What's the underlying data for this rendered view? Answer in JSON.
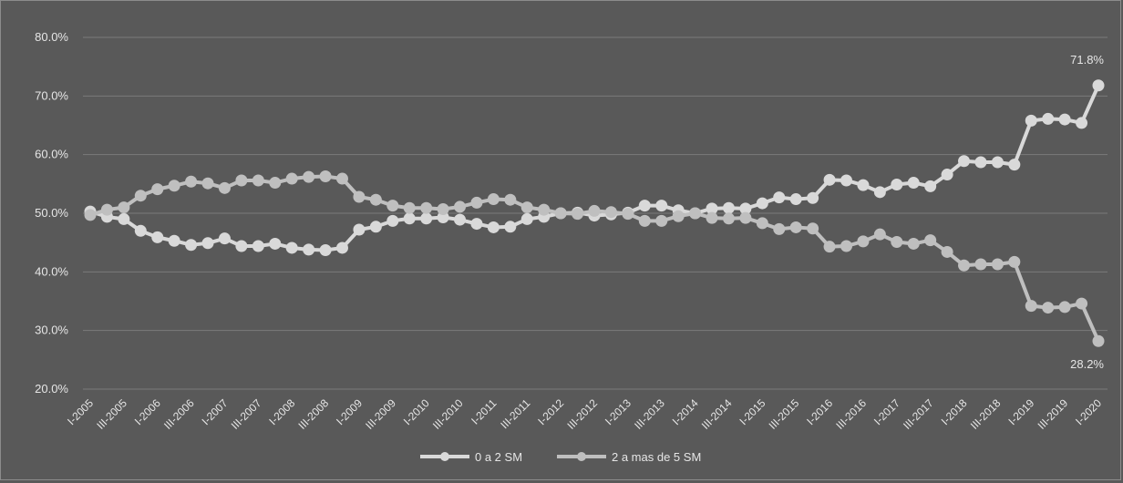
{
  "chart_data": {
    "type": "line",
    "title": "",
    "xlabel": "",
    "ylabel": "",
    "ylim": [
      0.2,
      0.8
    ],
    "y_ticks": [
      "80.0%",
      "70.0%",
      "60.0%",
      "50.0%",
      "40.0%",
      "30.0%",
      "20.0%"
    ],
    "y_tick_values": [
      0.8,
      0.7,
      0.6,
      0.5,
      0.4,
      0.3,
      0.2
    ],
    "grid": "horizontal",
    "legend_position": "bottom",
    "x": [
      "I-2005",
      "II-2005",
      "III-2005",
      "IV-2005",
      "I-2006",
      "II-2006",
      "III-2006",
      "IV-2006",
      "I-2007",
      "II-2007",
      "III-2007",
      "IV-2007",
      "I-2008",
      "II-2008",
      "III-2008",
      "IV-2008",
      "I-2009",
      "II-2009",
      "III-2009",
      "IV-2009",
      "I-2010",
      "II-2010",
      "III-2010",
      "IV-2010",
      "I-2011",
      "II-2011",
      "III-2011",
      "IV-2011",
      "I-2012",
      "II-2012",
      "III-2012",
      "IV-2012",
      "I-2013",
      "II-2013",
      "III-2013",
      "IV-2013",
      "I-2014",
      "II-2014",
      "III-2014",
      "IV-2014",
      "I-2015",
      "II-2015",
      "III-2015",
      "IV-2015",
      "I-2016",
      "II-2016",
      "III-2016",
      "IV-2016",
      "I-2017",
      "II-2017",
      "III-2017",
      "IV-2017",
      "I-2018",
      "II-2018",
      "III-2018",
      "IV-2018",
      "I-2019",
      "II-2019",
      "III-2019",
      "IV-2019",
      "I-2020"
    ],
    "x_tick_labels": [
      "I-2005",
      "III-2005",
      "I-2006",
      "III-2006",
      "I-2007",
      "III-2007",
      "I-2008",
      "III-2008",
      "I-2009",
      "III-2009",
      "I-2010",
      "III-2010",
      "I-2011",
      "III-2011",
      "I-2012",
      "III-2012",
      "I-2013",
      "III-2013",
      "I-2014",
      "III-2014",
      "I-2015",
      "III-2015",
      "I-2016",
      "III-2016",
      "I-2017",
      "III-2017",
      "I-2018",
      "III-2018",
      "I-2019",
      "III-2019",
      "I-2020"
    ],
    "series": [
      {
        "name": "0 a 2 SM",
        "color": "#d9d9d9",
        "values": [
          0.503,
          0.494,
          0.49,
          0.47,
          0.459,
          0.453,
          0.446,
          0.449,
          0.457,
          0.444,
          0.444,
          0.448,
          0.441,
          0.438,
          0.437,
          0.441,
          0.472,
          0.477,
          0.487,
          0.491,
          0.491,
          0.493,
          0.489,
          0.482,
          0.476,
          0.477,
          0.49,
          0.494,
          0.5,
          0.501,
          0.496,
          0.498,
          0.501,
          0.513,
          0.513,
          0.505,
          0.5,
          0.508,
          0.509,
          0.508,
          0.517,
          0.527,
          0.524,
          0.526,
          0.557,
          0.556,
          0.548,
          0.536,
          0.549,
          0.552,
          0.546,
          0.566,
          0.589,
          0.587,
          0.587,
          0.583,
          0.658,
          0.661,
          0.66,
          0.654,
          0.718
        ],
        "end_label": "71.8%"
      },
      {
        "name": "2 a mas de 5 SM",
        "color": "#bfbfbf",
        "values": [
          0.497,
          0.506,
          0.51,
          0.53,
          0.541,
          0.547,
          0.554,
          0.551,
          0.543,
          0.556,
          0.556,
          0.552,
          0.559,
          0.562,
          0.563,
          0.559,
          0.528,
          0.523,
          0.513,
          0.509,
          0.509,
          0.507,
          0.511,
          0.518,
          0.524,
          0.523,
          0.51,
          0.506,
          0.5,
          0.499,
          0.504,
          0.502,
          0.499,
          0.487,
          0.487,
          0.495,
          0.5,
          0.492,
          0.491,
          0.492,
          0.483,
          0.473,
          0.476,
          0.474,
          0.443,
          0.444,
          0.452,
          0.464,
          0.451,
          0.448,
          0.454,
          0.434,
          0.411,
          0.413,
          0.413,
          0.417,
          0.342,
          0.339,
          0.34,
          0.346,
          0.282
        ],
        "end_label": "28.2%"
      }
    ]
  }
}
